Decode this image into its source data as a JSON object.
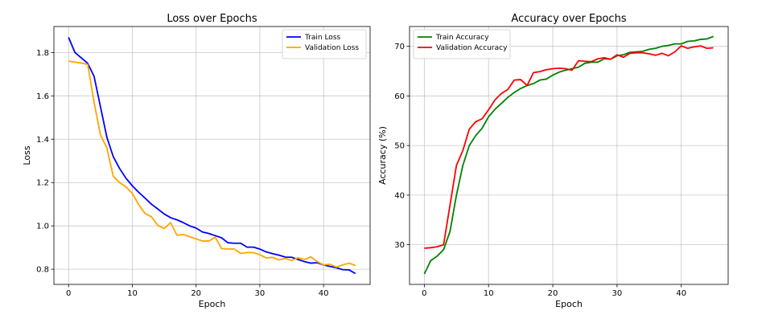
{
  "charts": [
    {
      "id": "loss",
      "chart_data": {
        "type": "line",
        "title": "Loss over Epochs",
        "xlabel": "Epoch",
        "ylabel": "Loss",
        "xlim": [
          -2.3,
          47.3
        ],
        "ylim": [
          0.73,
          1.92
        ],
        "xticks": [
          0,
          10,
          20,
          30,
          40
        ],
        "yticks": [
          0.8,
          1.0,
          1.2,
          1.4,
          1.6,
          1.8
        ],
        "ytick_labels": [
          "0.8",
          "1.0",
          "1.2",
          "1.4",
          "1.6",
          "1.8"
        ],
        "grid": true,
        "legend_position": "top-right",
        "x": [
          0,
          1,
          2,
          3,
          4,
          5,
          6,
          7,
          8,
          9,
          10,
          11,
          12,
          13,
          14,
          15,
          16,
          17,
          18,
          19,
          20,
          21,
          22,
          23,
          24,
          25,
          26,
          27,
          28,
          29,
          30,
          31,
          32,
          33,
          34,
          35,
          36,
          37,
          38,
          39,
          40,
          41,
          42,
          43,
          44,
          45
        ],
        "series": [
          {
            "name": "Train Loss",
            "color": "#0000ff",
            "values": [
              1.87,
              1.8,
              1.775,
              1.75,
              1.69,
              1.55,
              1.41,
              1.32,
              1.265,
              1.22,
              1.185,
              1.155,
              1.128,
              1.1,
              1.078,
              1.055,
              1.038,
              1.028,
              1.015,
              1.0,
              0.99,
              0.972,
              0.965,
              0.955,
              0.945,
              0.922,
              0.92,
              0.92,
              0.902,
              0.902,
              0.893,
              0.88,
              0.872,
              0.865,
              0.856,
              0.855,
              0.845,
              0.835,
              0.828,
              0.83,
              0.82,
              0.813,
              0.807,
              0.798,
              0.797,
              0.78
            ]
          },
          {
            "name": "Validation Loss",
            "color": "#ffa500",
            "values": [
              1.76,
              1.755,
              1.752,
              1.745,
              1.57,
              1.42,
              1.36,
              1.23,
              1.2,
              1.18,
              1.15,
              1.098,
              1.057,
              1.042,
              1.002,
              0.988,
              1.015,
              0.957,
              0.96,
              0.95,
              0.94,
              0.93,
              0.93,
              0.948,
              0.895,
              0.893,
              0.893,
              0.873,
              0.877,
              0.877,
              0.867,
              0.852,
              0.855,
              0.843,
              0.85,
              0.84,
              0.853,
              0.845,
              0.857,
              0.835,
              0.82,
              0.823,
              0.81,
              0.82,
              0.828,
              0.817
            ]
          }
        ]
      }
    },
    {
      "id": "accuracy",
      "chart_data": {
        "type": "line",
        "title": "Accuracy over Epochs",
        "xlabel": "Epoch",
        "ylabel": "Accuracy (%)",
        "xlim": [
          -2.3,
          47.3
        ],
        "ylim": [
          22.0,
          74.0
        ],
        "xticks": [
          0,
          10,
          20,
          30,
          40
        ],
        "yticks": [
          30,
          40,
          50,
          60,
          70
        ],
        "ytick_labels": [
          "30",
          "40",
          "50",
          "60",
          "70"
        ],
        "grid": true,
        "legend_position": "top-left",
        "x": [
          0,
          1,
          2,
          3,
          4,
          5,
          6,
          7,
          8,
          9,
          10,
          11,
          12,
          13,
          14,
          15,
          16,
          17,
          18,
          19,
          20,
          21,
          22,
          23,
          24,
          25,
          26,
          27,
          28,
          29,
          30,
          31,
          32,
          33,
          34,
          35,
          36,
          37,
          38,
          39,
          40,
          41,
          42,
          43,
          44,
          45
        ],
        "series": [
          {
            "name": "Train Accuracy",
            "color": "#008000",
            "values": [
              24.1,
              26.8,
              27.7,
              29.0,
              32.7,
              40.0,
              46.0,
              50.0,
              52.0,
              53.5,
              55.8,
              57.3,
              58.5,
              59.7,
              60.7,
              61.5,
              62.1,
              62.5,
              63.2,
              63.4,
              64.2,
              64.8,
              65.2,
              65.5,
              65.8,
              66.6,
              66.8,
              66.8,
              67.5,
              67.4,
              68.1,
              68.3,
              68.8,
              68.9,
              69.0,
              69.4,
              69.6,
              70.0,
              70.2,
              70.5,
              70.5,
              71.0,
              71.1,
              71.4,
              71.5,
              72.0
            ]
          },
          {
            "name": "Validation Accuracy",
            "color": "#ff0000",
            "values": [
              29.3,
              29.4,
              29.6,
              30.0,
              38.0,
              46.0,
              49.0,
              53.3,
              54.8,
              55.4,
              57.2,
              59.2,
              60.5,
              61.3,
              63.2,
              63.3,
              62.1,
              64.7,
              64.9,
              65.3,
              65.5,
              65.6,
              65.5,
              65.2,
              67.1,
              67.0,
              66.9,
              67.5,
              67.7,
              67.4,
              68.3,
              67.8,
              68.6,
              68.7,
              68.7,
              68.5,
              68.2,
              68.6,
              68.1,
              68.9,
              70.1,
              69.6,
              69.9,
              70.1,
              69.6,
              69.7
            ]
          }
        ]
      }
    }
  ]
}
